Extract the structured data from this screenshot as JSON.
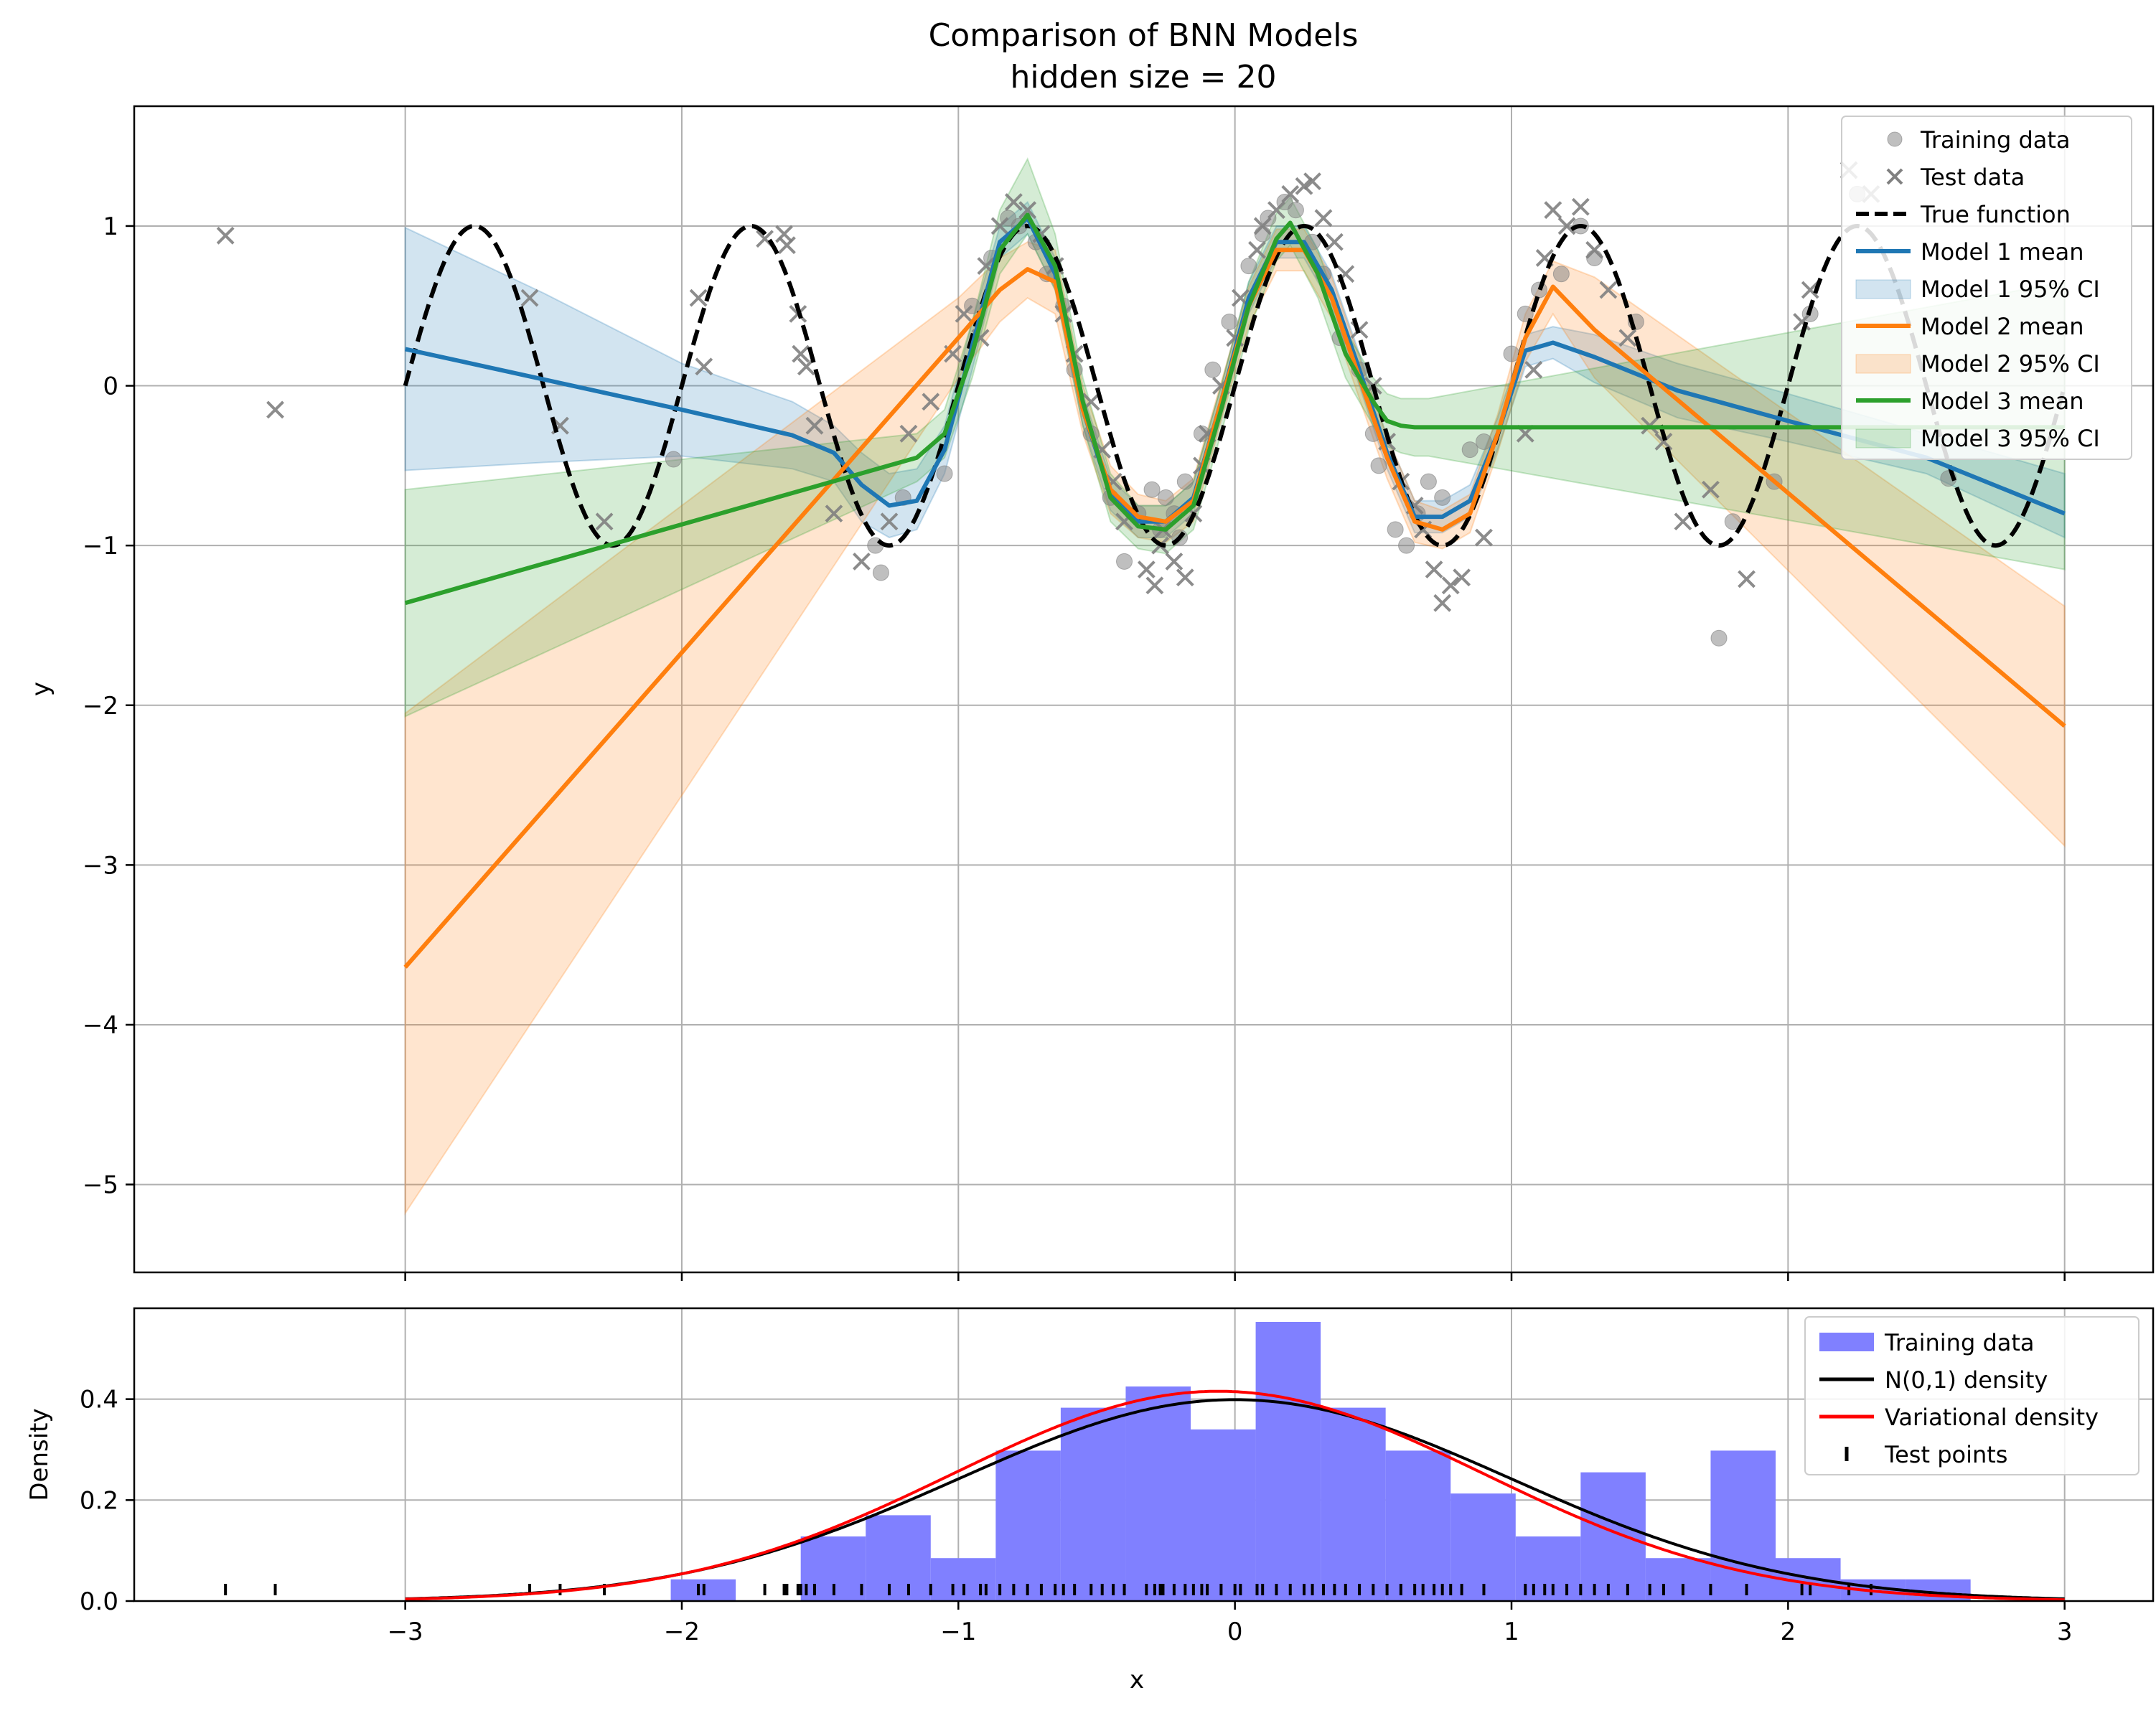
{
  "figure": {
    "title_line1": "Comparison of BNN Models",
    "title_line2": "hidden size = 20",
    "xlabel": "x"
  },
  "colors": {
    "model1": "#1f77b4",
    "model2": "#ff7f0e",
    "model3": "#2ca02c",
    "true_function": "#000000",
    "training_points": "#808080",
    "histogram": "#8080ff",
    "n01_density": "#000000",
    "variational_density": "#ff0000",
    "grid": "#b0b0b0"
  },
  "chart_data": [
    {
      "type": "line",
      "ylabel": "y",
      "xlim": [
        -3.98,
        3.32
      ],
      "ylim": [
        -5.55,
        1.75
      ],
      "xticks": [
        -3,
        -2,
        -1,
        0,
        1,
        2,
        3
      ],
      "yticks": [
        -5,
        -4,
        -3,
        -2,
        -1,
        0,
        1
      ],
      "grid": true,
      "legend_position": "top-right",
      "legend": [
        "Training data",
        "Test data",
        "True function",
        "Model 1 mean",
        "Model 1 95% CI",
        "Model 2 mean",
        "Model 2 95% CI",
        "Model 3 mean",
        "Model 3 95% CI"
      ],
      "true_function": {
        "name": "True function",
        "expression": "sin(2*pi*x)",
        "x_range": [
          -3,
          3
        ]
      },
      "series": [
        {
          "name": "Model 1 mean",
          "x": [
            -3.0,
            -2.5,
            -2.0,
            -1.6,
            -1.45,
            -1.35,
            -1.25,
            -1.15,
            -1.05,
            -0.95,
            -0.85,
            -0.75,
            -0.65,
            -0.55,
            -0.45,
            -0.35,
            -0.25,
            -0.15,
            -0.05,
            0.05,
            0.15,
            0.25,
            0.35,
            0.45,
            0.55,
            0.65,
            0.75,
            0.85,
            0.95,
            1.05,
            1.15,
            1.3,
            1.6,
            2.0,
            2.5,
            3.0
          ],
          "y": [
            0.23,
            0.04,
            -0.15,
            -0.31,
            -0.42,
            -0.62,
            -0.75,
            -0.72,
            -0.4,
            0.25,
            0.9,
            1.05,
            0.7,
            -0.15,
            -0.68,
            -0.85,
            -0.85,
            -0.7,
            -0.1,
            0.55,
            0.9,
            0.9,
            0.6,
            0.1,
            -0.42,
            -0.82,
            -0.82,
            -0.72,
            -0.3,
            0.22,
            0.27,
            0.18,
            -0.03,
            -0.22,
            -0.45,
            -0.8
          ],
          "ci_lower": [
            -0.53,
            -0.48,
            -0.44,
            -0.52,
            -0.6,
            -0.85,
            -0.95,
            -0.9,
            -0.55,
            0.1,
            0.8,
            0.95,
            0.6,
            -0.25,
            -0.78,
            -0.95,
            -0.95,
            -0.8,
            -0.2,
            0.45,
            0.8,
            0.8,
            0.5,
            0.0,
            -0.52,
            -0.92,
            -0.92,
            -0.82,
            -0.4,
            0.12,
            0.17,
            0.02,
            -0.2,
            -0.35,
            -0.55,
            -0.95
          ],
          "ci_upper": [
            0.99,
            0.58,
            0.14,
            -0.1,
            -0.25,
            -0.42,
            -0.55,
            -0.52,
            -0.25,
            0.4,
            1.0,
            1.15,
            0.8,
            -0.05,
            -0.58,
            -0.75,
            -0.75,
            -0.6,
            0.0,
            0.65,
            1.0,
            1.0,
            0.7,
            0.2,
            -0.32,
            -0.72,
            -0.72,
            -0.62,
            -0.2,
            0.32,
            0.37,
            0.32,
            0.14,
            -0.05,
            -0.3,
            -0.55
          ]
        },
        {
          "name": "Model 2 mean",
          "x": [
            -3.0,
            -1.0,
            -0.85,
            -0.75,
            -0.65,
            -0.55,
            -0.45,
            -0.35,
            -0.25,
            -0.15,
            -0.05,
            0.05,
            0.15,
            0.25,
            0.35,
            0.45,
            0.55,
            0.65,
            0.75,
            0.85,
            0.95,
            1.05,
            1.15,
            1.3,
            3.0
          ],
          "y": [
            -3.64,
            0.3,
            0.6,
            0.73,
            0.65,
            -0.15,
            -0.65,
            -0.82,
            -0.85,
            -0.72,
            -0.1,
            0.5,
            0.85,
            0.85,
            0.55,
            0.05,
            -0.45,
            -0.85,
            -0.9,
            -0.8,
            -0.3,
            0.3,
            0.62,
            0.35,
            -2.13
          ],
          "ci_lower": [
            -5.18,
            0.05,
            0.4,
            0.55,
            0.45,
            -0.3,
            -0.8,
            -0.95,
            -0.98,
            -0.85,
            -0.22,
            0.38,
            0.72,
            0.72,
            0.42,
            -0.08,
            -0.58,
            -0.98,
            -1.02,
            -0.92,
            -0.42,
            0.15,
            0.45,
            0.05,
            -2.88
          ],
          "ci_upper": [
            -2.05,
            0.55,
            0.8,
            0.9,
            0.85,
            0.0,
            -0.5,
            -0.68,
            -0.72,
            -0.58,
            0.02,
            0.62,
            0.98,
            0.98,
            0.68,
            0.18,
            -0.32,
            -0.72,
            -0.78,
            -0.68,
            -0.18,
            0.45,
            0.78,
            0.68,
            -1.38
          ]
        },
        {
          "name": "Model 3 mean",
          "x": [
            -3.0,
            -1.15,
            -1.05,
            -0.95,
            -0.85,
            -0.75,
            -0.65,
            -0.55,
            -0.45,
            -0.35,
            -0.25,
            -0.15,
            -0.05,
            0.05,
            0.15,
            0.2,
            0.3,
            0.4,
            0.5,
            0.55,
            0.6,
            0.65,
            0.7,
            3.0
          ],
          "y": [
            -1.36,
            -0.45,
            -0.3,
            0.2,
            0.85,
            1.07,
            0.75,
            -0.1,
            -0.7,
            -0.88,
            -0.9,
            -0.75,
            -0.15,
            0.5,
            0.92,
            1.02,
            0.7,
            0.2,
            -0.1,
            -0.22,
            -0.25,
            -0.26,
            -0.26,
            -0.26
          ],
          "ci_lower": [
            -2.07,
            -0.6,
            -0.45,
            0.05,
            0.7,
            0.95,
            0.6,
            -0.25,
            -0.85,
            -1.02,
            -1.05,
            -0.9,
            -0.3,
            0.35,
            0.78,
            0.88,
            0.55,
            0.05,
            -0.25,
            -0.38,
            -0.42,
            -0.44,
            -0.44,
            -1.15
          ],
          "ci_upper": [
            -0.65,
            -0.3,
            -0.15,
            0.4,
            1.1,
            1.42,
            0.95,
            0.05,
            -0.55,
            -0.75,
            -0.75,
            -0.6,
            0.0,
            0.65,
            1.08,
            1.18,
            0.85,
            0.35,
            0.05,
            -0.05,
            -0.08,
            -0.08,
            -0.08,
            0.65
          ]
        }
      ],
      "training_data": {
        "name": "Training data",
        "x": [
          -2.03,
          -1.3,
          -1.28,
          -1.2,
          -1.05,
          -0.95,
          -0.88,
          -0.82,
          -0.78,
          -0.72,
          -0.68,
          -0.62,
          -0.58,
          -0.52,
          -0.45,
          -0.4,
          -0.35,
          -0.3,
          -0.27,
          -0.25,
          -0.22,
          -0.2,
          -0.18,
          -0.12,
          -0.08,
          -0.02,
          0.05,
          0.1,
          0.12,
          0.18,
          0.22,
          0.28,
          0.32,
          0.38,
          0.45,
          0.5,
          0.52,
          0.58,
          0.62,
          0.66,
          0.7,
          0.75,
          0.85,
          0.9,
          1.0,
          1.05,
          1.1,
          1.18,
          1.25,
          1.3,
          1.45,
          1.75,
          1.8,
          1.95,
          2.08,
          2.25,
          2.58
        ],
        "y": [
          -0.46,
          -1.0,
          -1.17,
          -0.7,
          -0.55,
          0.5,
          0.8,
          1.05,
          1.0,
          0.9,
          0.7,
          0.5,
          0.1,
          -0.3,
          -0.7,
          -1.1,
          -0.8,
          -0.65,
          -0.9,
          -0.7,
          -0.8,
          -0.95,
          -0.6,
          -0.3,
          0.1,
          0.4,
          0.75,
          0.95,
          1.05,
          1.15,
          1.1,
          0.9,
          0.7,
          0.3,
          0.1,
          -0.3,
          -0.5,
          -0.9,
          -1.0,
          -0.8,
          -0.6,
          -0.7,
          -0.4,
          -0.35,
          0.2,
          0.45,
          0.6,
          0.7,
          1.0,
          0.8,
          0.4,
          -1.58,
          -0.85,
          -0.6,
          0.45,
          1.2,
          -0.58
        ]
      },
      "test_data": {
        "name": "Test data",
        "x": [
          -3.65,
          -3.47,
          -2.55,
          -2.44,
          -2.28,
          -1.94,
          -1.92,
          -1.7,
          -1.63,
          -1.62,
          -1.58,
          -1.57,
          -1.55,
          -1.52,
          -1.45,
          -1.35,
          -1.25,
          -1.18,
          -1.1,
          -1.02,
          -0.98,
          -0.92,
          -0.9,
          -0.85,
          -0.8,
          -0.75,
          -0.7,
          -0.65,
          -0.62,
          -0.58,
          -0.52,
          -0.48,
          -0.44,
          -0.4,
          -0.32,
          -0.29,
          -0.27,
          -0.26,
          -0.22,
          -0.18,
          -0.15,
          -0.12,
          -0.1,
          -0.05,
          0.0,
          0.02,
          0.08,
          0.1,
          0.15,
          0.2,
          0.25,
          0.28,
          0.32,
          0.36,
          0.4,
          0.45,
          0.5,
          0.55,
          0.6,
          0.65,
          0.68,
          0.72,
          0.75,
          0.78,
          0.82,
          0.9,
          1.05,
          1.08,
          1.12,
          1.15,
          1.2,
          1.25,
          1.3,
          1.35,
          1.42,
          1.5,
          1.55,
          1.62,
          1.72,
          1.85,
          2.05,
          2.08,
          2.22,
          2.3
        ],
        "y": [
          0.94,
          -0.15,
          0.55,
          -0.25,
          -0.85,
          0.55,
          0.12,
          0.92,
          0.95,
          0.88,
          0.45,
          0.2,
          0.12,
          -0.25,
          -0.8,
          -1.1,
          -0.85,
          -0.3,
          -0.1,
          0.2,
          0.45,
          0.3,
          0.75,
          1.0,
          1.15,
          1.1,
          0.95,
          0.75,
          0.45,
          0.2,
          -0.1,
          -0.4,
          -0.6,
          -0.85,
          -1.15,
          -1.25,
          -1.0,
          -0.9,
          -1.1,
          -1.2,
          -0.8,
          -0.5,
          -0.3,
          0.0,
          0.3,
          0.55,
          0.85,
          1.0,
          1.1,
          1.2,
          1.25,
          1.28,
          1.05,
          0.9,
          0.7,
          0.35,
          0.0,
          -0.35,
          -0.6,
          -0.75,
          -0.9,
          -1.15,
          -1.36,
          -1.25,
          -1.2,
          -0.95,
          -0.3,
          0.1,
          0.8,
          1.1,
          1.0,
          1.12,
          0.85,
          0.6,
          0.3,
          -0.25,
          -0.35,
          -0.85,
          -0.65,
          -1.21,
          0.4,
          0.6,
          1.35,
          1.2
        ]
      }
    },
    {
      "type": "bar",
      "ylabel": "Density",
      "xlim": [
        -3.98,
        3.32
      ],
      "ylim": [
        0,
        0.58
      ],
      "xticks": [
        -3,
        -2,
        -1,
        0,
        1,
        2,
        3
      ],
      "yticks": [
        0.0,
        0.2,
        0.4
      ],
      "grid": true,
      "legend_position": "top-right",
      "legend": [
        "Training data",
        "N(0,1) density",
        "Variational density",
        "Test points"
      ],
      "histogram": {
        "name": "Training data",
        "bin_edges": [
          -2.04,
          -1.805,
          -1.57,
          -1.335,
          -1.1,
          -0.865,
          -0.63,
          -0.395,
          -0.16,
          0.075,
          0.31,
          0.545,
          0.78,
          1.015,
          1.25,
          1.485,
          1.72,
          1.955,
          2.19,
          2.425,
          2.66
        ],
        "heights": [
          0.043,
          0.0,
          0.128,
          0.17,
          0.085,
          0.298,
          0.383,
          0.425,
          0.34,
          0.553,
          0.383,
          0.298,
          0.213,
          0.128,
          0.255,
          0.085,
          0.298,
          0.085,
          0.043,
          0.043
        ]
      },
      "n01_density": {
        "name": "N(0,1) density",
        "mean": 0.0,
        "std": 1.0,
        "x_range": [
          -3,
          3
        ]
      },
      "variational_density": {
        "name": "Variational density",
        "mean": -0.06,
        "std": 0.96,
        "x_range": [
          -3,
          3
        ]
      },
      "test_points": {
        "name": "Test points",
        "x": [
          -3.65,
          -3.47,
          -2.55,
          -2.44,
          -2.28,
          -1.94,
          -1.92,
          -1.7,
          -1.63,
          -1.62,
          -1.58,
          -1.57,
          -1.55,
          -1.52,
          -1.45,
          -1.35,
          -1.25,
          -1.18,
          -1.1,
          -1.02,
          -0.98,
          -0.92,
          -0.9,
          -0.85,
          -0.8,
          -0.75,
          -0.7,
          -0.65,
          -0.62,
          -0.58,
          -0.52,
          -0.48,
          -0.44,
          -0.4,
          -0.32,
          -0.29,
          -0.27,
          -0.26,
          -0.22,
          -0.18,
          -0.15,
          -0.12,
          -0.1,
          -0.05,
          0.0,
          0.02,
          0.08,
          0.1,
          0.15,
          0.2,
          0.25,
          0.28,
          0.32,
          0.36,
          0.4,
          0.45,
          0.5,
          0.55,
          0.6,
          0.65,
          0.68,
          0.72,
          0.75,
          0.78,
          0.82,
          0.9,
          1.05,
          1.08,
          1.12,
          1.15,
          1.2,
          1.25,
          1.3,
          1.35,
          1.42,
          1.5,
          1.55,
          1.62,
          1.72,
          1.85,
          2.05,
          2.08,
          2.22,
          2.3
        ]
      }
    }
  ]
}
